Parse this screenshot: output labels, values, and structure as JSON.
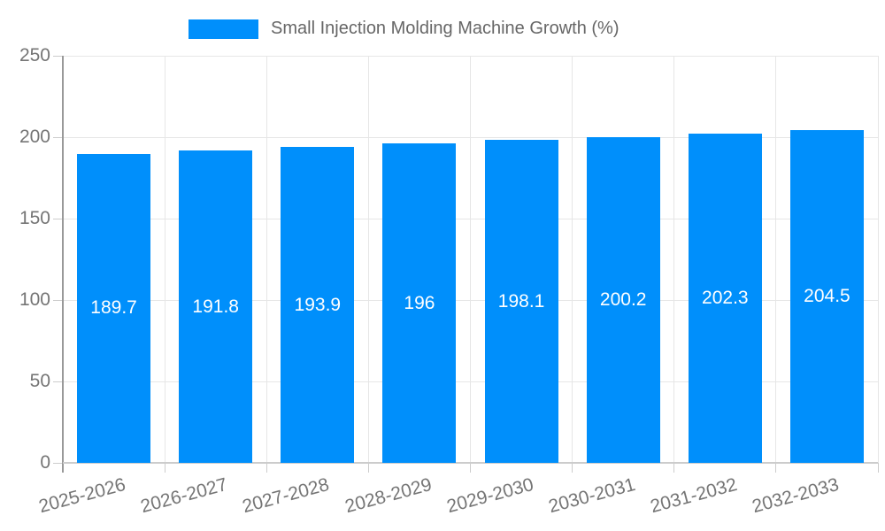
{
  "chart_data": {
    "type": "bar",
    "title": "Small Injection Molding Machine Growth (%)",
    "legend": {
      "position": "top",
      "label": "Small Injection Molding Machine Growth (%)"
    },
    "categories": [
      "2025-2026",
      "2026-2027",
      "2027-2028",
      "2028-2029",
      "2029-2030",
      "2030-2031",
      "2031-2032",
      "2032-2033"
    ],
    "series": [
      {
        "name": "Small Injection Molding Machine Growth (%)",
        "values": [
          189.7,
          191.8,
          193.9,
          196,
          198.1,
          200.2,
          202.3,
          204.5
        ],
        "value_labels": [
          "189.7",
          "191.8",
          "193.9",
          "196",
          "198.1",
          "200.2",
          "202.3",
          "204.5"
        ]
      }
    ],
    "xlabel": "",
    "ylabel": "",
    "ylim": [
      0,
      250
    ],
    "ytick_step": 50,
    "yticks": [
      "0",
      "50",
      "100",
      "150",
      "200",
      "250"
    ],
    "grid": true,
    "x_label_rotation_deg": -15,
    "legend_position": "top",
    "colors": {
      "bar": "#008FFB",
      "value_label": "#FFFFFF",
      "grid_line": "#E6E6E6",
      "x_axis_line": "#CCCCCC",
      "y_axis_line": "#999999",
      "tick": "#CCCCCC",
      "axis_text": "#757575",
      "legend_text": "#666666",
      "background": "#FFFFFF"
    }
  }
}
